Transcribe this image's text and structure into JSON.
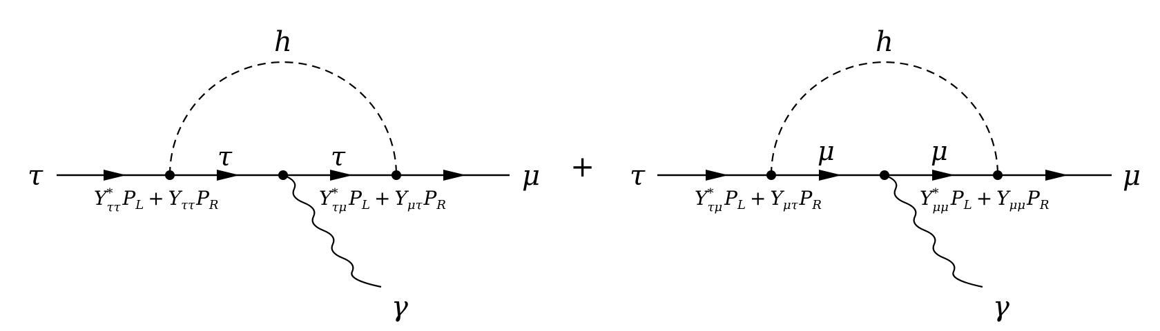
{
  "style": {
    "line_color": "#000000",
    "background": "#ffffff"
  },
  "operator": "+",
  "diagrams": [
    {
      "incoming": "τ",
      "outgoing": "μ",
      "scalar": "h",
      "photon": "γ",
      "internal_left": "τ",
      "internal_right": "τ",
      "vertex_left": {
        "Y1": "Y",
        "sup1": "*",
        "sub1": "ττ",
        "P1": "P",
        "Psub1": "L",
        "plus": "+",
        "Y2": "Y",
        "sub2": "ττ",
        "P2": "P",
        "Psub2": "R"
      },
      "vertex_right": {
        "Y1": "Y",
        "sup1": "*",
        "sub1": "τμ",
        "P1": "P",
        "Psub1": "L",
        "plus": "+",
        "Y2": "Y",
        "sub2": "μτ",
        "P2": "P",
        "Psub2": "R"
      }
    },
    {
      "incoming": "τ",
      "outgoing": "μ",
      "scalar": "h",
      "photon": "γ",
      "internal_left": "μ",
      "internal_right": "μ",
      "vertex_left": {
        "Y1": "Y",
        "sup1": "*",
        "sub1": "τμ",
        "P1": "P",
        "Psub1": "L",
        "plus": "+",
        "Y2": "Y",
        "sub2": "μτ",
        "P2": "P",
        "Psub2": "R"
      },
      "vertex_right": {
        "Y1": "Y",
        "sup1": "*",
        "sub1": "μμ",
        "P1": "P",
        "Psub1": "L",
        "plus": "+",
        "Y2": "Y",
        "sub2": "μμ",
        "P2": "P",
        "Psub2": "R"
      }
    }
  ]
}
